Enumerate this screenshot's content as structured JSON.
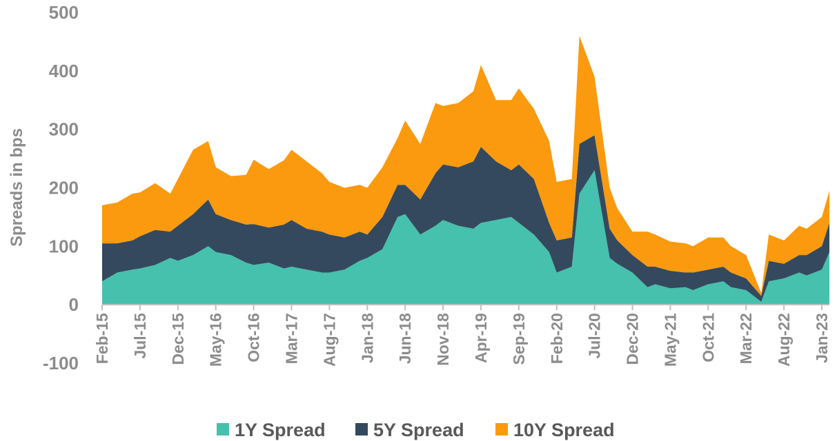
{
  "chart_data": {
    "type": "area",
    "stacked": true,
    "title": "",
    "xlabel": "",
    "ylabel": "Spreads in bps",
    "ylim": [
      -100,
      500
    ],
    "yticks": [
      -100,
      0,
      100,
      200,
      300,
      400,
      500
    ],
    "ytick_labels": [
      "-100",
      "0",
      "100",
      "200",
      "300",
      "400",
      "500"
    ],
    "xticks": [
      "Feb-15",
      "Jul-15",
      "Dec-15",
      "May-16",
      "Oct-16",
      "Mar-17",
      "Aug-17",
      "Jan-18",
      "Jun-18",
      "Nov-18",
      "Apr-19",
      "Sep-19",
      "Feb-20",
      "Jul-20",
      "Dec-20",
      "May-21",
      "Oct-21",
      "Mar-22",
      "Aug-22",
      "Jan-23"
    ],
    "x_start": "Feb-15",
    "x_end": "Feb-23",
    "grid": false,
    "legend_position": "bottom",
    "x": [
      "Feb-15",
      "Apr-15",
      "Jun-15",
      "Jul-15",
      "Sep-15",
      "Nov-15",
      "Dec-15",
      "Feb-16",
      "Apr-16",
      "May-16",
      "Jul-16",
      "Sep-16",
      "Oct-16",
      "Dec-16",
      "Feb-17",
      "Mar-17",
      "May-17",
      "Jul-17",
      "Aug-17",
      "Oct-17",
      "Dec-17",
      "Jan-18",
      "Mar-18",
      "May-18",
      "Jun-18",
      "Aug-18",
      "Oct-18",
      "Nov-18",
      "Jan-19",
      "Mar-19",
      "Apr-19",
      "Jun-19",
      "Aug-19",
      "Sep-19",
      "Nov-19",
      "Jan-20",
      "Feb-20",
      "Apr-20",
      "May-20",
      "Jul-20",
      "Sep-20",
      "Oct-20",
      "Dec-20",
      "Feb-21",
      "Mar-21",
      "May-21",
      "Jul-21",
      "Aug-21",
      "Oct-21",
      "Dec-21",
      "Jan-22",
      "Mar-22",
      "May-22",
      "Jun-22",
      "Aug-22",
      "Oct-22",
      "Nov-22",
      "Jan-23",
      "Feb-23"
    ],
    "series": [
      {
        "name": "1Y Spread",
        "color": "#45c1ae",
        "values": [
          40,
          55,
          60,
          62,
          68,
          80,
          75,
          85,
          100,
          90,
          85,
          72,
          68,
          72,
          62,
          65,
          60,
          55,
          55,
          60,
          75,
          80,
          95,
          150,
          155,
          120,
          135,
          145,
          135,
          130,
          140,
          145,
          150,
          140,
          120,
          90,
          55,
          65,
          190,
          230,
          80,
          70,
          55,
          30,
          35,
          28,
          30,
          25,
          35,
          40,
          30,
          25,
          5,
          40,
          45,
          55,
          50,
          60,
          90
        ]
      },
      {
        "name": "5Y Spread",
        "color": "#34495e",
        "values": [
          65,
          50,
          50,
          55,
          60,
          45,
          60,
          70,
          80,
          65,
          60,
          65,
          70,
          60,
          75,
          80,
          70,
          70,
          65,
          55,
          50,
          40,
          55,
          55,
          50,
          60,
          90,
          95,
          100,
          115,
          130,
          100,
          80,
          100,
          95,
          50,
          55,
          50,
          85,
          60,
          50,
          40,
          30,
          35,
          30,
          30,
          25,
          30,
          25,
          25,
          25,
          20,
          10,
          35,
          25,
          30,
          35,
          40,
          50
        ]
      },
      {
        "name": "10Y Spread",
        "color": "#fb9a0e",
        "values": [
          65,
          70,
          80,
          75,
          80,
          65,
          80,
          110,
          100,
          80,
          75,
          85,
          110,
          100,
          110,
          120,
          115,
          100,
          90,
          85,
          80,
          80,
          85,
          80,
          110,
          95,
          120,
          100,
          110,
          120,
          140,
          105,
          120,
          130,
          120,
          140,
          100,
          100,
          185,
          100,
          70,
          55,
          40,
          60,
          55,
          50,
          50,
          45,
          55,
          50,
          45,
          40,
          5,
          45,
          40,
          50,
          45,
          50,
          55
        ]
      }
    ]
  }
}
